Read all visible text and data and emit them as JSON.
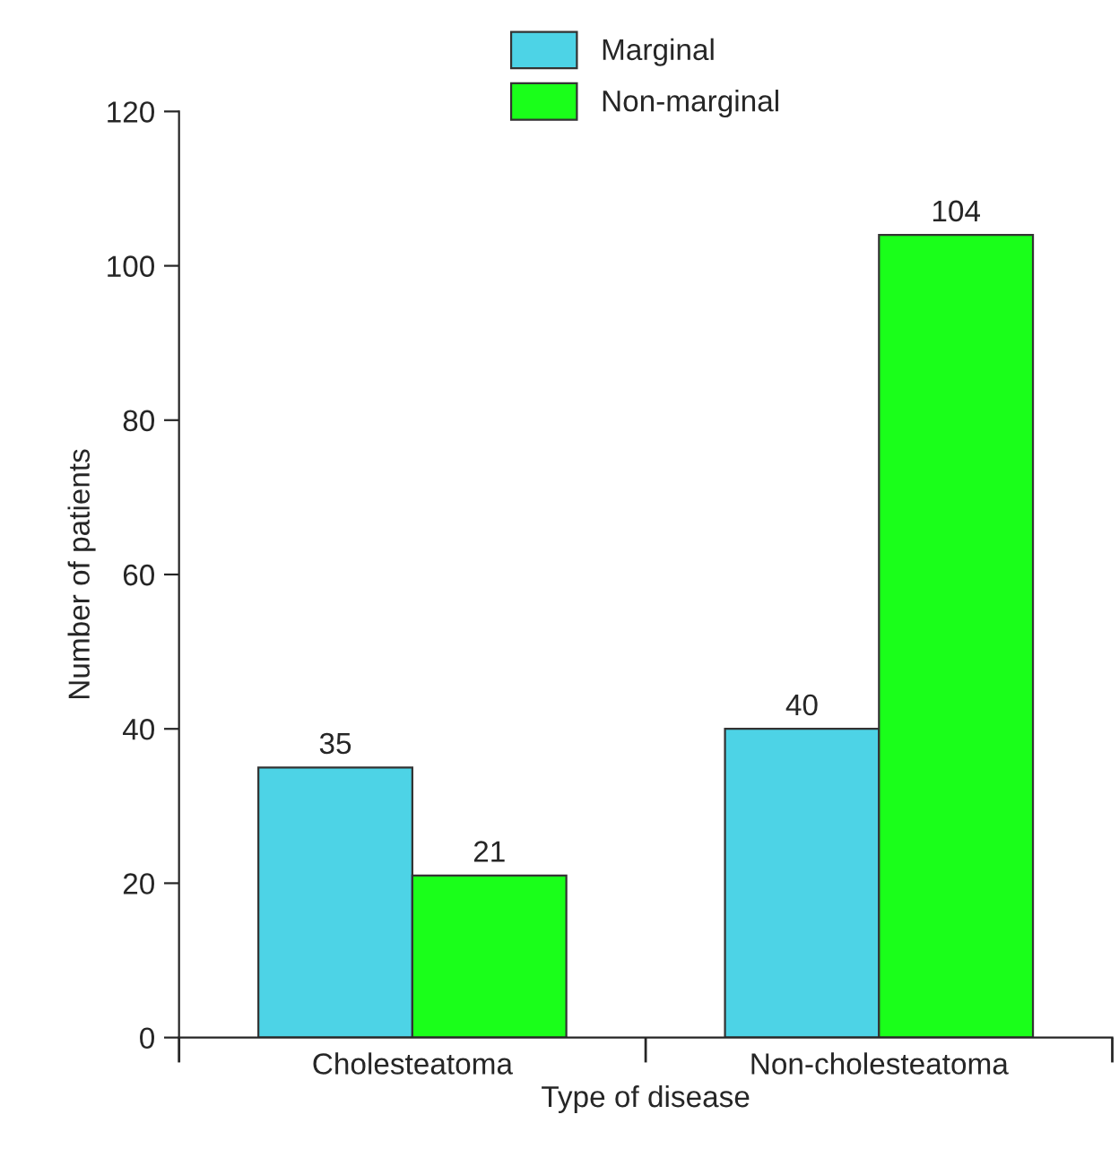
{
  "chart_data": {
    "type": "bar",
    "xlabel": "Type of disease",
    "ylabel": "Number of patients",
    "categories": [
      "Cholesteatoma",
      "Non-cholesteatoma"
    ],
    "series": [
      {
        "name": "Marginal",
        "color": "#4dd3e6",
        "values": [
          35,
          40
        ]
      },
      {
        "name": "Non-marginal",
        "color": "#1aff1a",
        "values": [
          21,
          104
        ]
      }
    ],
    "ylim": [
      0,
      120
    ],
    "yticks": [
      0,
      20,
      40,
      60,
      80,
      100,
      120
    ],
    "data_labels": true,
    "grid": false,
    "legend": "top"
  }
}
